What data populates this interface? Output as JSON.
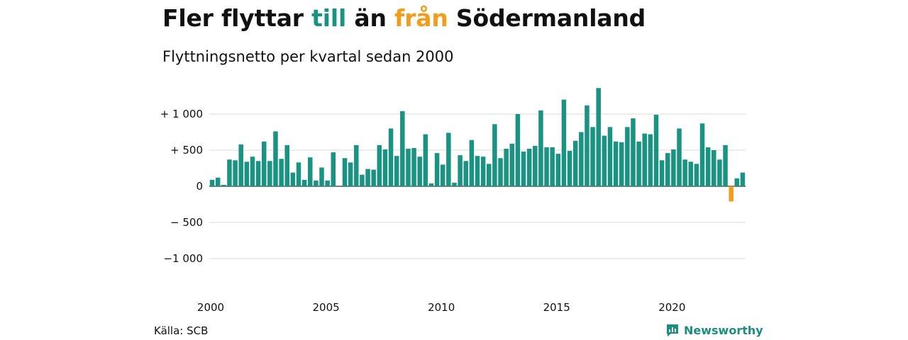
{
  "header": {
    "title_parts": [
      "Fler flyttar ",
      "till",
      " än ",
      "från",
      " Södermanland"
    ],
    "subtitle": "Flyttningsnetto per kvartal sedan 2000"
  },
  "colors": {
    "positive": "#1a9383",
    "negative": "#f29e1c",
    "grid": "#d9d9d9",
    "zero": "#333333"
  },
  "footer": {
    "source": "Källa: SCB",
    "brand": "Newsworthy",
    "brand_icon": "bar-chart-icon"
  },
  "chart_data": {
    "type": "bar",
    "title": "Fler flyttar till än från Södermanland",
    "subtitle": "Flyttningsnetto per kvartal sedan 2000",
    "xlabel": "",
    "ylabel": "",
    "ylim": [
      -1350,
      1450
    ],
    "y_ticks": [
      1000,
      500,
      0,
      -500,
      -1000
    ],
    "y_tick_labels": [
      "+ 1 000",
      "+   500",
      "0",
      "−  500",
      "−1 000"
    ],
    "x_tick_labels": [
      "2000",
      "2005",
      "2010",
      "2015",
      "2020"
    ],
    "grid": true,
    "first_year": 2000,
    "values": [
      90,
      120,
      20,
      370,
      360,
      580,
      340,
      410,
      350,
      620,
      350,
      760,
      380,
      570,
      190,
      330,
      90,
      400,
      80,
      260,
      80,
      470,
      0,
      390,
      330,
      570,
      160,
      240,
      230,
      570,
      510,
      800,
      420,
      1040,
      520,
      530,
      410,
      720,
      40,
      460,
      300,
      740,
      50,
      430,
      350,
      640,
      420,
      410,
      310,
      860,
      390,
      520,
      590,
      1000,
      480,
      520,
      560,
      1050,
      540,
      540,
      450,
      1200,
      490,
      630,
      750,
      1120,
      820,
      1360,
      700,
      820,
      620,
      610,
      820,
      940,
      620,
      730,
      720,
      990,
      360,
      460,
      510,
      800,
      370,
      340,
      310,
      870,
      540,
      500,
      370,
      570,
      -210,
      110,
      190
    ]
  }
}
